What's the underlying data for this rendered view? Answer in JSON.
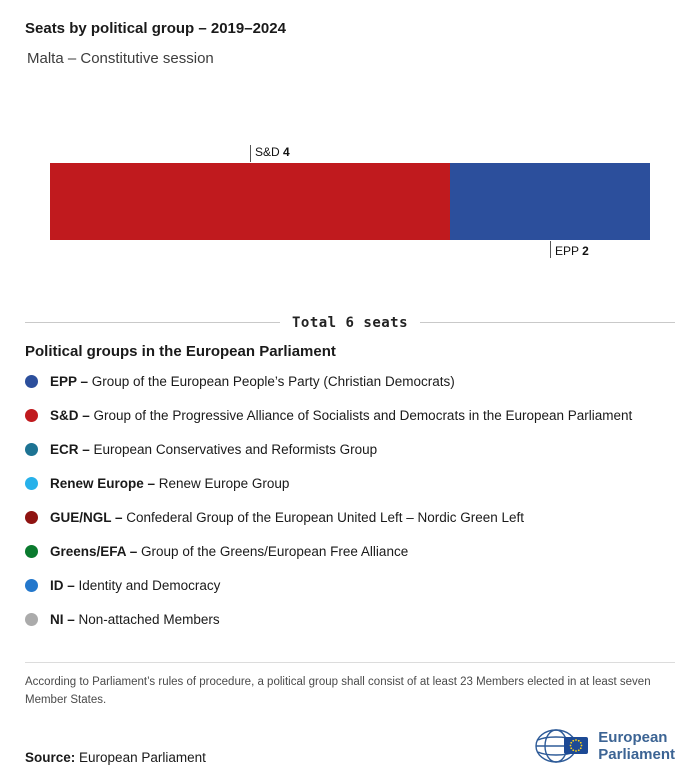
{
  "header": {
    "title": "Seats by political group – 2019–2024",
    "subtitle": "Malta – Constitutive session"
  },
  "chart_data": {
    "type": "bar",
    "subtype": "horizontal-stacked-seats",
    "title": "Seats by political group – 2019–2024",
    "subtitle": "Malta – Constitutive session",
    "total_seats": 6,
    "total_label": "Total 6 seats",
    "segments": [
      {
        "group": "S&D",
        "seats": 4,
        "color": "#c01a1e",
        "label_side": "top"
      },
      {
        "group": "EPP",
        "seats": 2,
        "color": "#2c4f9c",
        "label_side": "bottom"
      }
    ]
  },
  "legend": {
    "heading": "Political groups in the European Parliament",
    "items": [
      {
        "abbr": "EPP –",
        "name": "Group of the European People’s Party (Christian Democrats)",
        "color": "#2c4f9c"
      },
      {
        "abbr": "S&D –",
        "name": "Group of the Progressive Alliance of Socialists and Democrats in the European Parliament",
        "color": "#c01a1e"
      },
      {
        "abbr": "ECR –",
        "name": "European Conservatives and Reformists Group",
        "color": "#1d7393"
      },
      {
        "abbr": "Renew Europe –",
        "name": "Renew Europe Group",
        "color": "#27b1ea"
      },
      {
        "abbr": "GUE/NGL –",
        "name": "Confederal Group of the European United Left – Nordic Green Left",
        "color": "#8f1311"
      },
      {
        "abbr": "Greens/EFA –",
        "name": "Group of the Greens/European Free Alliance",
        "color": "#0a7a2e"
      },
      {
        "abbr": "ID –",
        "name": "Identity and Democracy",
        "color": "#2478cc"
      },
      {
        "abbr": "NI –",
        "name": "Non-attached Members",
        "color": "#ababab"
      }
    ]
  },
  "footnote": "According to Parliament’s rules of procedure, a political group shall consist of at least 23 Members elected in at least seven Member States.",
  "source": {
    "label": "Source:",
    "text": "European Parliament"
  },
  "logo": {
    "icon": "european-parliament-logo",
    "line1": "European",
    "line2": "Parliament"
  }
}
